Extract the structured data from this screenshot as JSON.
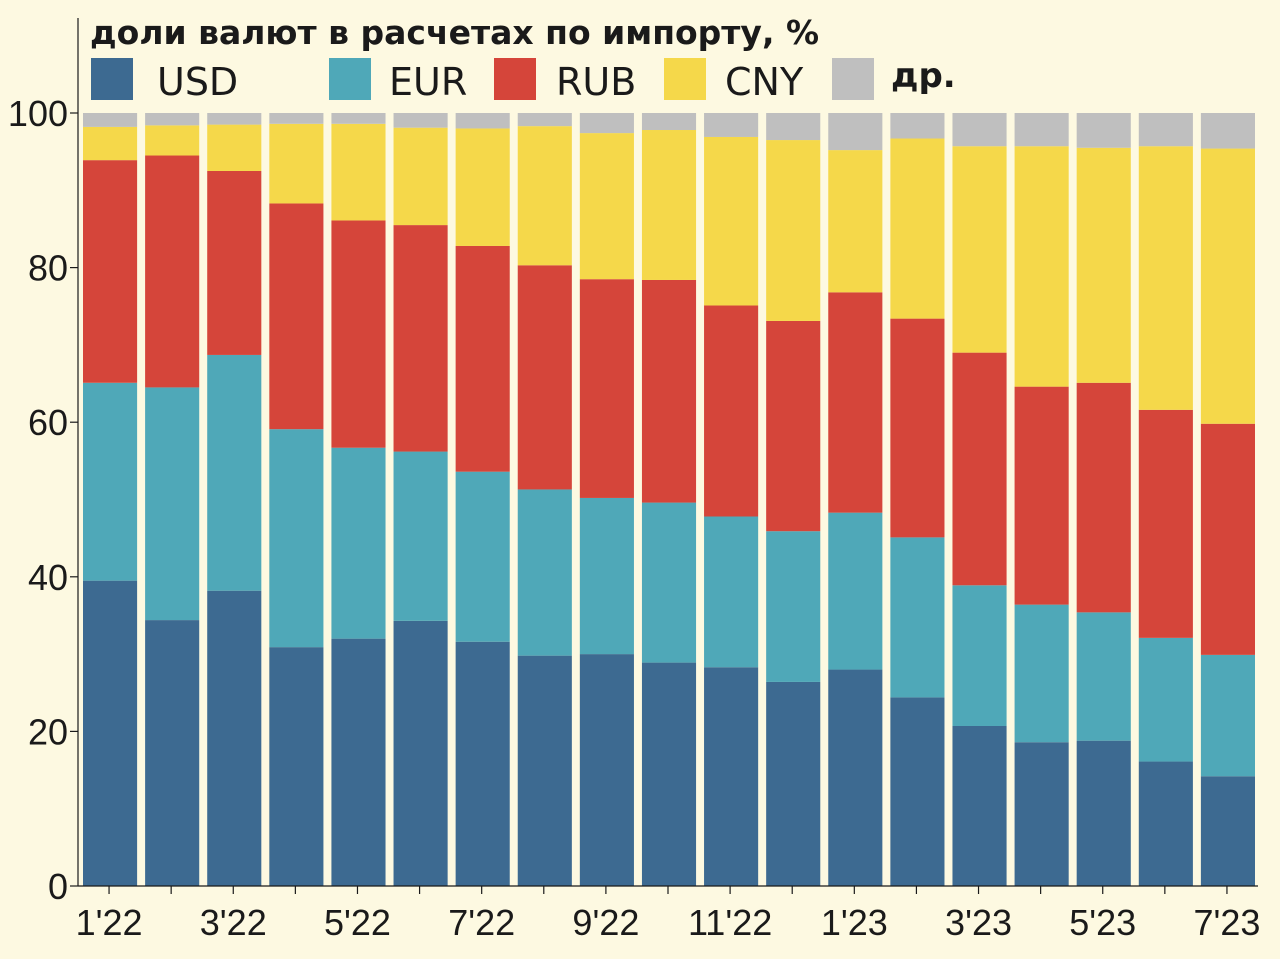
{
  "chart_data": {
    "type": "bar",
    "stacked": true,
    "title": "доли валют в расчетах по импорту, %",
    "categories": [
      "1'22",
      "2'22",
      "3'22",
      "4'22",
      "5'22",
      "6'22",
      "7'22",
      "8'22",
      "9'22",
      "10'22",
      "11'22",
      "12'22",
      "1'23",
      "2'23",
      "3'23",
      "4'23",
      "5'23",
      "6'23",
      "7'23"
    ],
    "x_tick_labels": [
      "1'22",
      "3'22",
      "5'22",
      "7'22",
      "9'22",
      "11'22",
      "1'23",
      "3'23",
      "5'23",
      "7'23"
    ],
    "y_ticks": [
      0,
      20,
      40,
      60,
      80,
      100
    ],
    "ylim": [
      0,
      100
    ],
    "grid": false,
    "legend_position": "top",
    "series": [
      {
        "name": "USD",
        "color": "#3d6a91",
        "values": [
          39.5,
          34.4,
          38.2,
          30.9,
          32.0,
          34.3,
          31.6,
          29.8,
          30.0,
          28.9,
          28.3,
          26.4,
          28.0,
          24.4,
          20.7,
          18.6,
          18.8,
          16.1,
          14.2
        ]
      },
      {
        "name": "EUR",
        "color": "#4fa8b8",
        "values": [
          25.6,
          30.1,
          30.5,
          28.2,
          24.7,
          21.9,
          22.0,
          21.5,
          20.2,
          20.7,
          19.5,
          19.5,
          20.3,
          20.7,
          18.2,
          17.8,
          16.6,
          16.0,
          15.7
        ]
      },
      {
        "name": "RUB",
        "color": "#d5453a",
        "values": [
          28.8,
          30.0,
          23.8,
          29.2,
          29.4,
          29.3,
          29.2,
          29.0,
          28.3,
          28.8,
          27.3,
          27.2,
          28.5,
          28.3,
          30.1,
          28.2,
          29.7,
          29.5,
          29.9
        ]
      },
      {
        "name": "CNY",
        "color": "#f5d84a",
        "values": [
          4.3,
          3.9,
          6.0,
          10.3,
          12.5,
          12.6,
          15.2,
          18.0,
          18.9,
          19.4,
          21.8,
          23.4,
          18.4,
          23.3,
          26.7,
          31.1,
          30.4,
          34.1,
          35.6
        ]
      },
      {
        "name": "др.",
        "color": "#bfbfbf",
        "values": [
          1.8,
          1.6,
          1.5,
          1.4,
          1.4,
          1.9,
          2.0,
          1.7,
          2.6,
          2.2,
          3.1,
          3.5,
          4.8,
          3.3,
          4.3,
          4.3,
          4.5,
          4.3,
          4.6
        ]
      }
    ]
  }
}
